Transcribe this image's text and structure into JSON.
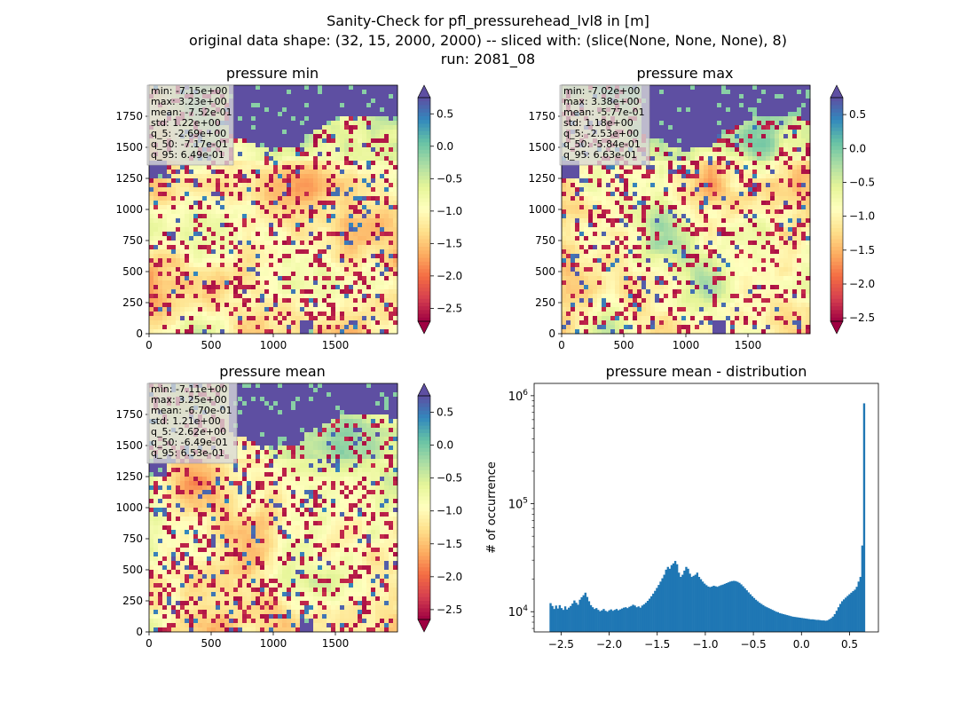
{
  "figure": {
    "title_lines": [
      "Sanity-Check for pfl_pressurehead_lvl8 in [m]",
      "original data shape: (32, 15, 2000, 2000) -- sliced with: (slice(None, None, None), 8)",
      "run: 2081_08"
    ]
  },
  "chart_data": [
    {
      "type": "heatmap",
      "title": "pressure min",
      "xlim": [
        0,
        2000
      ],
      "ylim": [
        0,
        2000
      ],
      "xticks": [
        0,
        500,
        1000,
        1500
      ],
      "yticks": [
        0,
        250,
        500,
        750,
        1000,
        1250,
        1500,
        1750
      ],
      "colormap": "Spectral",
      "colorbar": {
        "range": [
          -2.7,
          0.75
        ],
        "ticks": [
          0.5,
          0.0,
          -0.5,
          -1.0,
          -1.5,
          -2.0,
          -2.5
        ],
        "extend": "both"
      },
      "stats": [
        "min: -7.15e+00",
        "max: 3.23e+00",
        "mean: -7.52e-01",
        "std: 1.22e+00",
        "q_5: -2.69e+00",
        "q_50: -7.17e-01",
        "q_95: 6.49e-01"
      ]
    },
    {
      "type": "heatmap",
      "title": "pressure max",
      "xlim": [
        0,
        2000
      ],
      "ylim": [
        0,
        2000
      ],
      "xticks": [
        0,
        500,
        1000,
        1500
      ],
      "yticks": [
        0,
        250,
        500,
        750,
        1000,
        1250,
        1500,
        1750
      ],
      "colormap": "Spectral",
      "colorbar": {
        "range": [
          -2.55,
          0.75
        ],
        "ticks": [
          0.5,
          0.0,
          -0.5,
          -1.0,
          -1.5,
          -2.0,
          -2.5
        ],
        "extend": "both"
      },
      "stats": [
        "min: -7.02e+00",
        "max: 3.38e+00",
        "mean: -5.77e-01",
        "std: 1.18e+00",
        "q_5: -2.53e+00",
        "q_50: -5.84e-01",
        "q_95: 6.63e-01"
      ]
    },
    {
      "type": "heatmap",
      "title": "pressure mean",
      "xlim": [
        0,
        2000
      ],
      "ylim": [
        0,
        2000
      ],
      "xticks": [
        0,
        500,
        1000,
        1500
      ],
      "yticks": [
        0,
        250,
        500,
        750,
        1000,
        1250,
        1500,
        1750
      ],
      "colormap": "Spectral",
      "colorbar": {
        "range": [
          -2.65,
          0.75
        ],
        "ticks": [
          0.5,
          0.0,
          -0.5,
          -1.0,
          -1.5,
          -2.0,
          -2.5
        ],
        "extend": "both"
      },
      "stats": [
        "min: -7.11e+00",
        "max: 3.25e+00",
        "mean: -6.70e-01",
        "std: 1.21e+00",
        "q_5: -2.62e+00",
        "q_50: -6.49e-01",
        "q_95: 6.53e-01"
      ]
    },
    {
      "type": "bar",
      "title": "pressure mean - distribution",
      "ylabel": "# of occurrence",
      "xlabel": "",
      "xlim": [
        -2.78,
        0.8
      ],
      "xticks": [
        -2.5,
        -2.0,
        -1.5,
        -1.0,
        -0.5,
        0.0,
        0.5
      ],
      "xtick_labels": [
        "−2.5",
        "−2.0",
        "−1.5",
        "−1.0",
        "−0.5",
        "0.0",
        "0.5"
      ],
      "yscale": "log",
      "ylim": [
        6500,
        1300000
      ],
      "yticks": [
        10000,
        100000,
        1000000
      ],
      "ytick_labels": [
        "10^4",
        "10^5",
        "10^6"
      ],
      "bar_color": "#1f77b4",
      "bins": {
        "start": -2.62,
        "end": 0.66
      },
      "values": [
        12000,
        11300,
        10600,
        11400,
        10700,
        11500,
        10800,
        10400,
        11200,
        10500,
        10900,
        11300,
        11900,
        12700,
        12100,
        11600,
        12900,
        13600,
        14200,
        15000,
        13700,
        12500,
        11500,
        11000,
        10600,
        10800,
        10400,
        10100,
        10300,
        10600,
        10200,
        10000,
        10300,
        10500,
        10200,
        10400,
        10600,
        10300,
        10500,
        10700,
        10900,
        11000,
        10800,
        11100,
        11300,
        11600,
        11400,
        11000,
        11200,
        10900,
        11400,
        11700,
        12100,
        12600,
        13200,
        13900,
        14700,
        15600,
        16600,
        17700,
        19000,
        20400,
        22000,
        24500,
        26000,
        25000,
        27000,
        28000,
        29500,
        27500,
        23000,
        21000,
        22000,
        24000,
        26000,
        25000,
        22500,
        21000,
        21500,
        22000,
        23000,
        21000,
        20000,
        19000,
        18200,
        17600,
        17100,
        16900,
        17100,
        17400,
        17200,
        17000,
        17300,
        17600,
        17800,
        18100,
        18400,
        18700,
        19000,
        19200,
        19300,
        19200,
        18900,
        18500,
        17900,
        17200,
        16500,
        15800,
        15100,
        14500,
        13900,
        13400,
        12900,
        12500,
        12100,
        11800,
        11500,
        11200,
        11000,
        10800,
        10600,
        10400,
        10200,
        10000,
        9900,
        9700,
        9600,
        9500,
        9400,
        9300,
        9200,
        9100,
        9000,
        8950,
        8900,
        8850,
        8800,
        8750,
        8700,
        8650,
        8600,
        8550,
        8500,
        8500,
        8450,
        8400,
        8400,
        8350,
        8300,
        8300,
        8250,
        8300,
        8500,
        8700,
        9000,
        9500,
        10200,
        11000,
        11800,
        12500,
        13000,
        13500,
        14000,
        14500,
        15000,
        15500,
        16000,
        17000,
        19000,
        21000,
        41000,
        850000
      ]
    }
  ]
}
